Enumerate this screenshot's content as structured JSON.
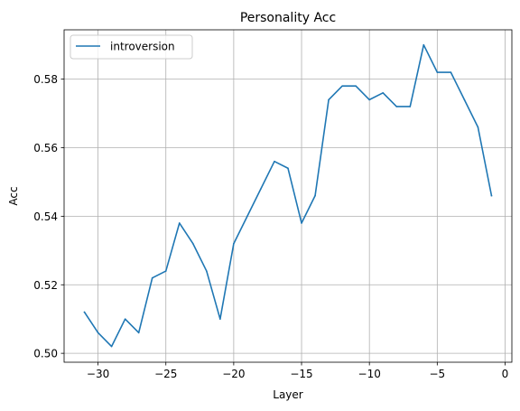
{
  "chart_data": {
    "type": "line",
    "title": "Personality Acc",
    "xlabel": "Layer",
    "ylabel": "Acc",
    "xlim": [
      -32.5,
      0.5
    ],
    "ylim": [
      0.4974,
      0.5944
    ],
    "xticks": [
      -30,
      -25,
      -20,
      -15,
      -10,
      -5,
      0
    ],
    "xtick_labels": [
      "−30",
      "−25",
      "−20",
      "−15",
      "−10",
      "−5",
      "0"
    ],
    "yticks": [
      0.5,
      0.52,
      0.54,
      0.56,
      0.58
    ],
    "ytick_labels": [
      "0.50",
      "0.52",
      "0.54",
      "0.56",
      "0.58"
    ],
    "grid": true,
    "legend_position": "top-left",
    "series": [
      {
        "name": "introversion",
        "color": "#1f77b4",
        "x": [
          -31,
          -30,
          -29,
          -28,
          -27,
          -26,
          -25,
          -24,
          -23,
          -22,
          -21,
          -20,
          -19,
          -18,
          -17,
          -16,
          -15,
          -14,
          -13,
          -12,
          -11,
          -10,
          -9,
          -8,
          -7,
          -6,
          -5,
          -4,
          -3,
          -2,
          -1
        ],
        "y": [
          0.512,
          0.506,
          0.502,
          0.51,
          0.506,
          0.522,
          0.524,
          0.538,
          0.532,
          0.524,
          0.51,
          0.532,
          0.54,
          0.548,
          0.556,
          0.554,
          0.538,
          0.546,
          0.574,
          0.578,
          0.578,
          0.574,
          0.576,
          0.572,
          0.572,
          0.59,
          0.582,
          0.582,
          0.574,
          0.566,
          0.546
        ]
      }
    ]
  }
}
